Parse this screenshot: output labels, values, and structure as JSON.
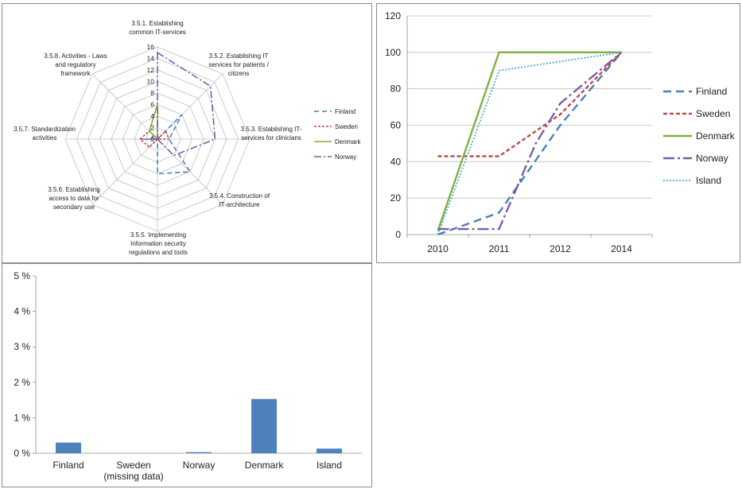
{
  "colors": {
    "finland": "#4a7ebb",
    "sweden": "#be4b48",
    "denmark": "#7fb03f",
    "norway": "#7d5ca6",
    "island": "#4bacc6",
    "bar": "#4f81bd",
    "grid": "#bfbfbf",
    "axis": "#8c8c8c"
  },
  "chart_data": [
    {
      "type": "radar",
      "axes": [
        [
          "3.5.1. Establishing",
          "common IT-services"
        ],
        [
          "3.5.2. Establishing IT",
          "services for patients /",
          "citizens"
        ],
        [
          "3.5.3. Establishing IT-",
          "services for clinicians"
        ],
        [
          "3.5.4. Construction of",
          "IT-architecture"
        ],
        [
          "3.5.5. Implementing",
          "Information security",
          "regulations and tools"
        ],
        [
          "3.5.6. Establishing",
          "access to data for",
          "secondary use"
        ],
        [
          "3.5.7. Standardization",
          "activities"
        ],
        [
          "3.5.8. Activities - Laws",
          "and regulatory",
          "framework"
        ]
      ],
      "rlim": [
        0,
        16
      ],
      "ticks": [
        "0",
        "2",
        "4",
        "6",
        "8",
        "10",
        "12",
        "14",
        "16"
      ],
      "legend_position": "right",
      "series": [
        {
          "name": "Finland",
          "key": "finland",
          "dash": "6,4",
          "values": [
            0,
            6,
            2,
            8,
            6,
            0,
            1,
            1
          ]
        },
        {
          "name": "Sweden",
          "key": "sweden",
          "dash": "3,2",
          "values": [
            0,
            2,
            2,
            0,
            0,
            2,
            3,
            2
          ]
        },
        {
          "name": "Denmark",
          "key": "denmark",
          "dash": "",
          "values": [
            6,
            0,
            0,
            0,
            0,
            0,
            0,
            2
          ]
        },
        {
          "name": "Norway",
          "key": "norway",
          "dash": "9,3,2,3",
          "values": [
            15,
            13,
            10,
            4,
            0,
            0,
            3,
            0
          ]
        }
      ]
    },
    {
      "type": "line",
      "x": [
        "2010",
        "2011",
        "2012",
        "2014"
      ],
      "ylim": [
        0,
        120
      ],
      "yticks": [
        "0",
        "20",
        "40",
        "60",
        "80",
        "100",
        "120"
      ],
      "legend_position": "right",
      "series": [
        {
          "name": "Finland",
          "key": "finland",
          "dash": "10,6",
          "points": [
            [
              0,
              0
            ],
            [
              1,
              12
            ],
            [
              2,
              60
            ],
            [
              3,
              100
            ]
          ]
        },
        {
          "name": "Sweden",
          "key": "sweden",
          "dash": "5,3",
          "points": [
            [
              0,
              43
            ],
            [
              1,
              43
            ],
            [
              2,
              66
            ],
            [
              3,
              100
            ]
          ]
        },
        {
          "name": "Denmark",
          "key": "denmark",
          "dash": "",
          "points": [
            [
              0,
              2
            ],
            [
              1,
              100
            ],
            [
              2,
              100
            ],
            [
              3,
              100
            ]
          ]
        },
        {
          "name": "Norway",
          "key": "norway",
          "dash": "14,4,3,4",
          "points": [
            [
              0,
              3
            ],
            [
              1,
              3
            ],
            [
              1.6,
              50
            ],
            [
              2,
              72
            ],
            [
              3,
              100
            ]
          ]
        },
        {
          "name": "Island",
          "key": "island",
          "dash": "2,2",
          "points": [
            [
              0,
              0
            ],
            [
              1,
              90
            ],
            [
              2,
              95
            ],
            [
              3,
              100
            ]
          ]
        }
      ]
    },
    {
      "type": "bar",
      "categories": [
        [
          "Finland"
        ],
        [
          "Sweden",
          "(missing data)"
        ],
        [
          "Norway"
        ],
        [
          "Denmark"
        ],
        [
          "Island"
        ]
      ],
      "values": [
        0.3,
        0,
        0.03,
        1.53,
        0.13
      ],
      "ylim": [
        0,
        5
      ],
      "yticks": [
        "0 %",
        "1 %",
        "2 %",
        "3 %",
        "4 %",
        "5 %"
      ]
    }
  ]
}
